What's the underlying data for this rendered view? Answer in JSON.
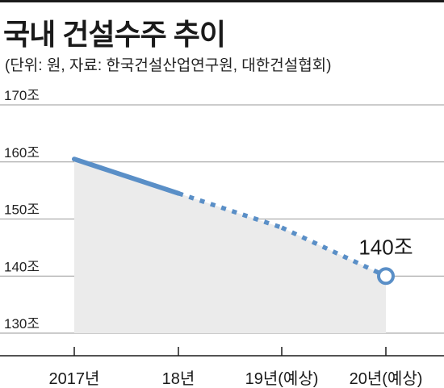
{
  "header": {
    "title": "국내 건설수주 추이",
    "subtitle": "(단위: 원, 자료: 한국건설산업연구원, 대한건설협회)"
  },
  "colors": {
    "line": "#5a8fc7",
    "area": "#ebebeb",
    "grid": "#9a9a9a",
    "text": "#1a1a1a"
  },
  "chart_data": {
    "type": "line",
    "title": "국내 건설수주 추이",
    "subtitle": "(단위: 원, 자료: 한국건설산업연구원, 대한건설협회)",
    "categories": [
      "2017년",
      "18년",
      "19년(예상)",
      "20년(예상)"
    ],
    "series": [
      {
        "values": [
          160.5,
          154.5,
          148.5,
          140
        ],
        "segment_styles": [
          "solid",
          "dotted",
          "dotted"
        ]
      }
    ],
    "ylim": [
      130,
      170
    ],
    "yticks": [
      170,
      160,
      150,
      140,
      130
    ],
    "ytick_labels": [
      "170조",
      "160조",
      "150조",
      "140조",
      "130조"
    ],
    "annotations": [
      {
        "category": "20년(예상)",
        "label": "140조"
      }
    ],
    "grid": true,
    "area_fill": true,
    "legend": "none"
  }
}
